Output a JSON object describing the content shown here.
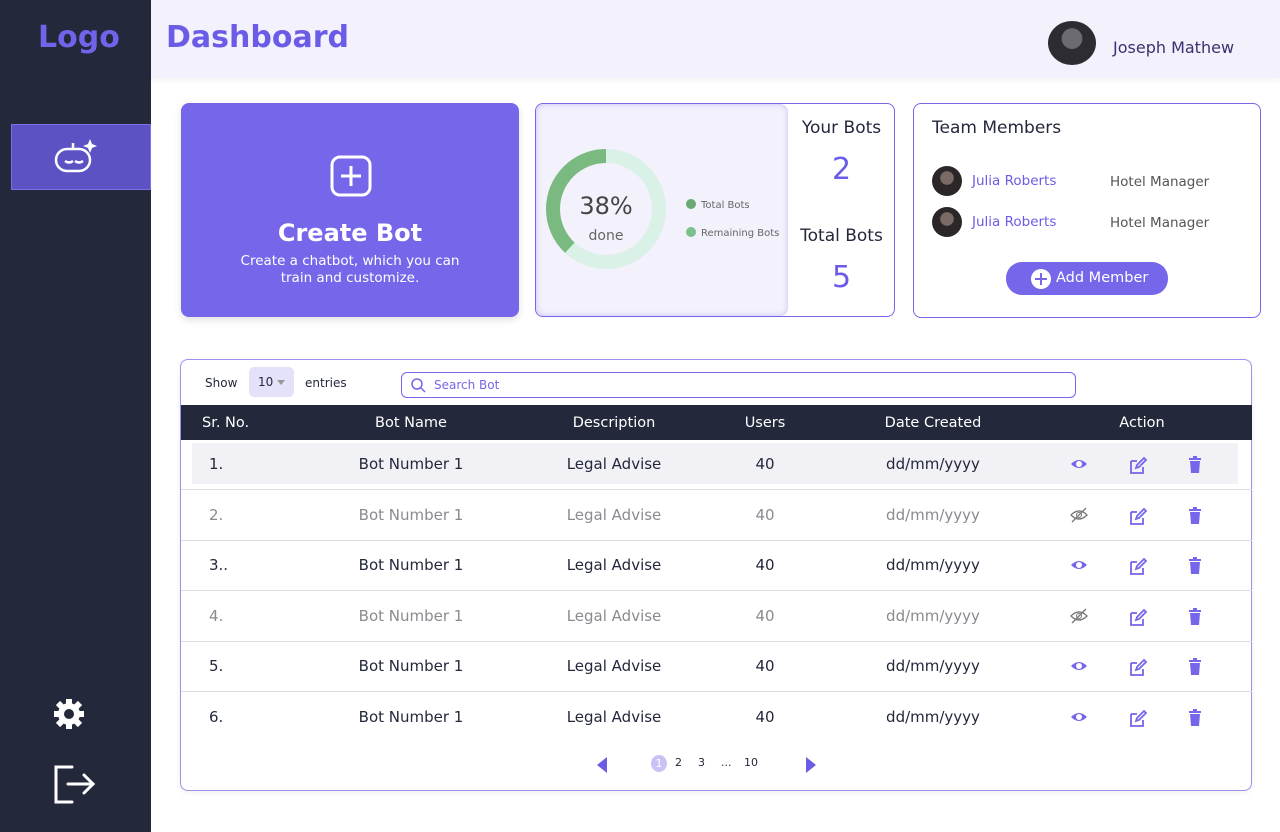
{
  "sidebar": {
    "logo": "Logo"
  },
  "header": {
    "title": "Dashboard",
    "user_name": "Joseph Mathew"
  },
  "create_bot": {
    "title": "Create Bot",
    "description": "Create a chatbot, which you can train and customize."
  },
  "progress": {
    "done_percent": 38,
    "done_label": "38%",
    "caption": "done",
    "legend": [
      "Total Bots",
      "Remaining Bots"
    ]
  },
  "stats": [
    {
      "label": "Your Bots",
      "value": "2"
    },
    {
      "label": "Total Bots",
      "value": "5"
    }
  ],
  "team": {
    "title": "Team Members",
    "members": [
      {
        "name": "Julia Roberts",
        "role": "Hotel Manager"
      },
      {
        "name": "Julia Roberts",
        "role": "Hotel Manager"
      }
    ],
    "button": "Add Member"
  },
  "table": {
    "show_label": "Show",
    "entries_value": "10",
    "entries_label": "entries",
    "search_placeholder": "Search Bot",
    "columns": [
      "Sr. No.",
      "Bot Name",
      "Description",
      "Users",
      "Date Created",
      "Action"
    ],
    "rows": [
      {
        "cells": [
          "1.",
          "Bot Number 1",
          "Legal Advise",
          "40",
          "dd/mm/yyyy"
        ],
        "enabled": true
      },
      {
        "cells": [
          "2.",
          "Bot Number 1",
          "Legal Advise",
          "40",
          "dd/mm/yyyy"
        ],
        "enabled": false
      },
      {
        "cells": [
          "3..",
          "Bot Number 1",
          "Legal Advise",
          "40",
          "dd/mm/yyyy"
        ],
        "enabled": true
      },
      {
        "cells": [
          "4.",
          "Bot Number 1",
          "Legal Advise",
          "40",
          "dd/mm/yyyy"
        ],
        "enabled": false
      },
      {
        "cells": [
          "5.",
          "Bot Number 1",
          "Legal Advise",
          "40",
          "dd/mm/yyyy"
        ],
        "enabled": true
      },
      {
        "cells": [
          "6.",
          "Bot Number 1",
          "Legal Advise",
          "40",
          "dd/mm/yyyy"
        ],
        "enabled": true
      }
    ]
  },
  "pagination": [
    "1",
    "2",
    "3",
    "...",
    "10"
  ]
}
